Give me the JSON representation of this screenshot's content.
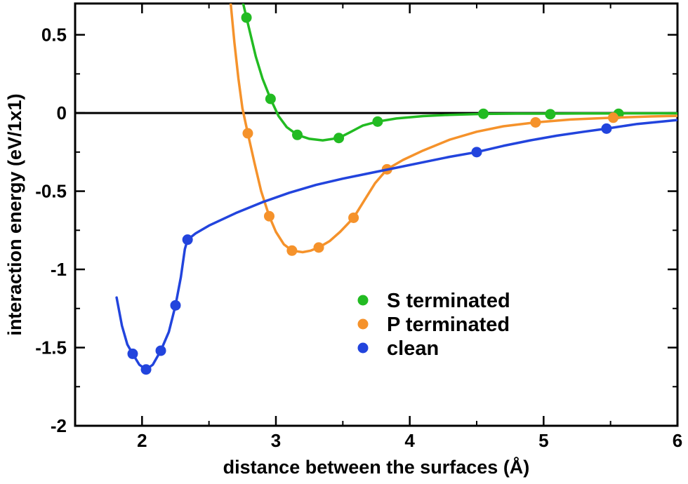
{
  "chart_data": {
    "type": "line",
    "title": "",
    "xlabel": "distance between the surfaces (Å)",
    "ylabel": "interaction energy (eV/1x1)",
    "xlim": [
      1.5,
      6
    ],
    "ylim": [
      -2,
      0.7
    ],
    "x_ticks": [
      2,
      3,
      4,
      5,
      6
    ],
    "x_tick_labels": [
      "2",
      "3",
      "4",
      "5",
      "6"
    ],
    "y_ticks": [
      0.5,
      0,
      -0.5,
      -1,
      -1.5,
      -2
    ],
    "y_tick_labels": [
      "0.5",
      "0",
      "-0.5",
      "-1",
      "-1.5",
      "-2"
    ],
    "zero_line": true,
    "grid": false,
    "legend_position": "lower-center",
    "series": [
      {
        "name": "S terminated",
        "color": "#22bb22",
        "points": [
          [
            2.78,
            0.61
          ],
          [
            2.96,
            0.09
          ],
          [
            3.16,
            -0.14
          ],
          [
            3.47,
            -0.16
          ],
          [
            3.76,
            -0.055
          ],
          [
            4.55,
            -0.005
          ],
          [
            5.05,
            -0.008
          ],
          [
            5.56,
            -0.005
          ]
        ],
        "curve": [
          [
            2.75,
            0.72
          ],
          [
            2.78,
            0.61
          ],
          [
            2.85,
            0.36
          ],
          [
            2.9,
            0.22
          ],
          [
            2.96,
            0.09
          ],
          [
            3.02,
            -0.02
          ],
          [
            3.08,
            -0.09
          ],
          [
            3.16,
            -0.14
          ],
          [
            3.25,
            -0.165
          ],
          [
            3.35,
            -0.175
          ],
          [
            3.47,
            -0.16
          ],
          [
            3.55,
            -0.125
          ],
          [
            3.65,
            -0.08
          ],
          [
            3.76,
            -0.055
          ],
          [
            3.9,
            -0.035
          ],
          [
            4.1,
            -0.02
          ],
          [
            4.3,
            -0.012
          ],
          [
            4.55,
            -0.006
          ],
          [
            4.8,
            -0.004
          ],
          [
            5.05,
            -0.004
          ],
          [
            5.3,
            -0.003
          ],
          [
            5.56,
            -0.003
          ],
          [
            6.0,
            -0.002
          ]
        ]
      },
      {
        "name": "P terminated",
        "color": "#f5922b",
        "points": [
          [
            2.79,
            -0.13
          ],
          [
            2.95,
            -0.66
          ],
          [
            3.12,
            -0.88
          ],
          [
            3.32,
            -0.86
          ],
          [
            3.58,
            -0.67
          ],
          [
            3.83,
            -0.36
          ],
          [
            4.94,
            -0.06
          ],
          [
            5.52,
            -0.03
          ]
        ],
        "curve": [
          [
            2.66,
            0.72
          ],
          [
            2.69,
            0.45
          ],
          [
            2.72,
            0.22
          ],
          [
            2.75,
            0.03
          ],
          [
            2.79,
            -0.13
          ],
          [
            2.84,
            -0.32
          ],
          [
            2.89,
            -0.5
          ],
          [
            2.95,
            -0.66
          ],
          [
            3.0,
            -0.76
          ],
          [
            3.06,
            -0.84
          ],
          [
            3.12,
            -0.88
          ],
          [
            3.2,
            -0.89
          ],
          [
            3.26,
            -0.88
          ],
          [
            3.32,
            -0.86
          ],
          [
            3.4,
            -0.82
          ],
          [
            3.48,
            -0.76
          ],
          [
            3.58,
            -0.67
          ],
          [
            3.66,
            -0.56
          ],
          [
            3.74,
            -0.45
          ],
          [
            3.83,
            -0.36
          ],
          [
            3.95,
            -0.3
          ],
          [
            4.1,
            -0.24
          ],
          [
            4.3,
            -0.17
          ],
          [
            4.5,
            -0.12
          ],
          [
            4.7,
            -0.085
          ],
          [
            4.94,
            -0.06
          ],
          [
            5.2,
            -0.042
          ],
          [
            5.52,
            -0.03
          ],
          [
            5.8,
            -0.022
          ],
          [
            6.0,
            -0.018
          ]
        ]
      },
      {
        "name": "clean",
        "color": "#2244dd",
        "points": [
          [
            1.93,
            -1.54
          ],
          [
            2.03,
            -1.64
          ],
          [
            2.14,
            -1.52
          ],
          [
            2.25,
            -1.23
          ],
          [
            2.34,
            -0.81
          ],
          [
            4.5,
            -0.25
          ],
          [
            5.47,
            -0.1
          ]
        ],
        "curve": [
          [
            1.81,
            -1.18
          ],
          [
            1.85,
            -1.36
          ],
          [
            1.89,
            -1.48
          ],
          [
            1.93,
            -1.54
          ],
          [
            1.98,
            -1.61
          ],
          [
            2.03,
            -1.64
          ],
          [
            2.08,
            -1.61
          ],
          [
            2.14,
            -1.52
          ],
          [
            2.2,
            -1.4
          ],
          [
            2.25,
            -1.23
          ],
          [
            2.29,
            -1.05
          ],
          [
            2.32,
            -0.87
          ],
          [
            2.34,
            -0.81
          ],
          [
            2.4,
            -0.77
          ],
          [
            2.5,
            -0.72
          ],
          [
            2.7,
            -0.64
          ],
          [
            2.9,
            -0.57
          ],
          [
            3.1,
            -0.51
          ],
          [
            3.3,
            -0.46
          ],
          [
            3.5,
            -0.42
          ],
          [
            3.7,
            -0.385
          ],
          [
            3.9,
            -0.35
          ],
          [
            4.1,
            -0.315
          ],
          [
            4.3,
            -0.28
          ],
          [
            4.5,
            -0.25
          ],
          [
            4.7,
            -0.21
          ],
          [
            4.9,
            -0.175
          ],
          [
            5.1,
            -0.145
          ],
          [
            5.3,
            -0.12
          ],
          [
            5.47,
            -0.1
          ],
          [
            5.7,
            -0.07
          ],
          [
            6.0,
            -0.045
          ]
        ]
      }
    ]
  }
}
